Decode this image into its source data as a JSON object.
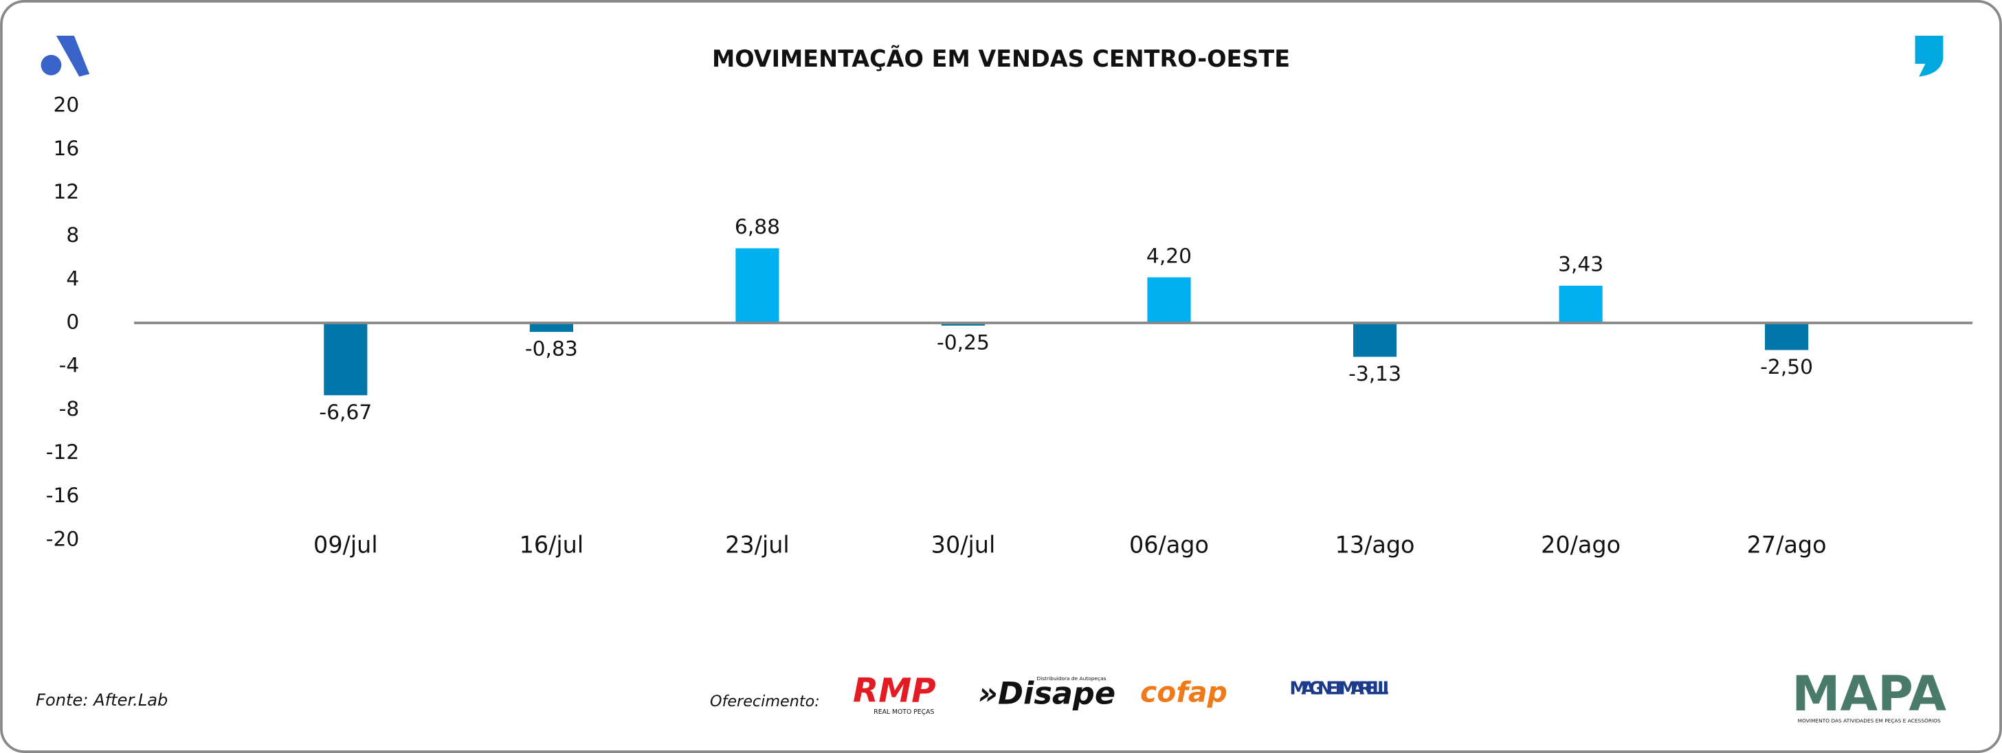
{
  "chart_data": {
    "type": "bar",
    "title": "MOVIMENTAÇÃO EM VENDAS CENTRO-OESTE",
    "categories": [
      "09/jul",
      "16/jul",
      "23/jul",
      "30/jul",
      "06/ago",
      "13/ago",
      "20/ago",
      "27/ago"
    ],
    "values": [
      -6.67,
      -0.83,
      6.88,
      -0.25,
      4.2,
      -3.13,
      3.43,
      -2.5
    ],
    "value_labels": [
      "-6,67",
      "-0,83",
      "6,88",
      "-0,25",
      "4,20",
      "-3,13",
      "3,43",
      "-2,50"
    ],
    "positive_color": "#00b0f0",
    "negative_color": "#0077a8",
    "ylim": [
      -20,
      20
    ],
    "yticks": [
      20,
      16,
      12,
      8,
      4,
      0,
      -4,
      -8,
      -12,
      -16,
      -20
    ]
  },
  "footer": {
    "source": "Fonte: After.Lab",
    "sponsor_label": "Oferecimento:",
    "sponsors": [
      {
        "name": "RMP",
        "tagline": "REAL MOTO PEÇAS"
      },
      {
        "name": "»Disape",
        "tagline": "Distribuidora de Autopeças"
      },
      {
        "name": "cofap"
      },
      {
        "name": "MAGNETI MARELLI"
      }
    ],
    "brand": "MAPA",
    "brand_tagline": "MOVIMENTO DAS ATIVIDADES EM PEÇAS E ACESSÓRIOS"
  }
}
